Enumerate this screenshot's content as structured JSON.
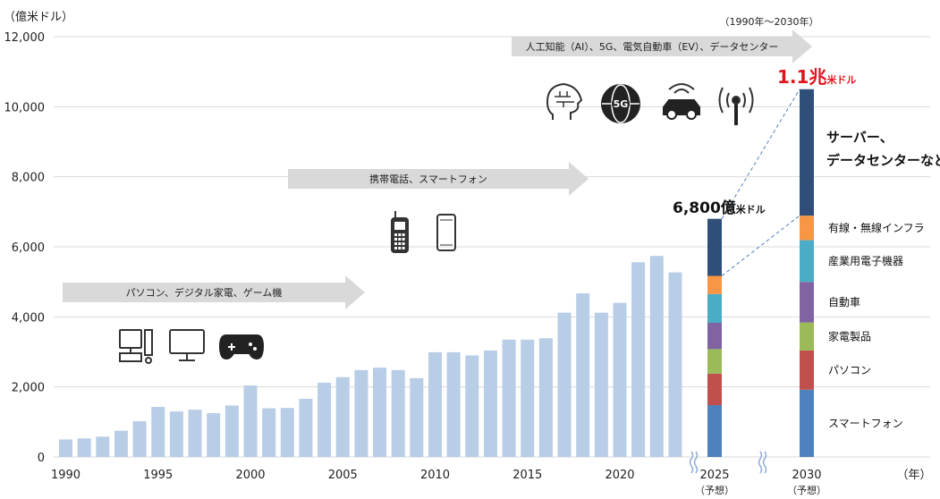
{
  "chart_data": {
    "type": "bar",
    "unit_label": "（億米ドル）",
    "period_label": "（1990年～2030年）",
    "year_axis_suffix": "（年）",
    "ylim": [
      0,
      12000
    ],
    "y_ticks": [
      "0",
      "2,000",
      "4,000",
      "6,000",
      "8,000",
      "10,000",
      "12,000"
    ],
    "y_tick_values": [
      0,
      2000,
      4000,
      6000,
      8000,
      10000,
      12000
    ],
    "grid": true,
    "historical": {
      "years": [
        1990,
        1991,
        1992,
        1993,
        1994,
        1995,
        1996,
        1997,
        1998,
        1999,
        2000,
        2001,
        2002,
        2003,
        2004,
        2005,
        2006,
        2007,
        2008,
        2009,
        2010,
        2011,
        2012,
        2013,
        2014,
        2015,
        2016,
        2017,
        2018,
        2019,
        2020,
        2021,
        2022,
        2023
      ],
      "values": [
        500,
        530,
        580,
        750,
        1020,
        1430,
        1300,
        1350,
        1250,
        1470,
        2040,
        1390,
        1400,
        1660,
        2120,
        2280,
        2480,
        2550,
        2480,
        2250,
        2990,
        2990,
        2900,
        3040,
        3350,
        3350,
        3390,
        4120,
        4670,
        4120,
        4400,
        5560,
        5740,
        5270
      ],
      "color": "#b8cde6"
    },
    "x_tick_labels": [
      "1990",
      "1995",
      "2000",
      "2005",
      "2010",
      "2015",
      "2020"
    ],
    "x_tick_years": [
      1990,
      1995,
      2000,
      2005,
      2010,
      2015,
      2020
    ],
    "forecast_bars": [
      {
        "year_label": "2025",
        "sub_label": "（予想）",
        "total": 6800
      },
      {
        "year_label": "2030",
        "sub_label": "（予想）",
        "total": 10500
      }
    ],
    "segments": [
      {
        "name": "スマートフォン",
        "color": "#4e81bd",
        "values": [
          1480,
          1920
        ]
      },
      {
        "name": "パソコン",
        "color": "#c0504d",
        "values": [
          900,
          1120
        ]
      },
      {
        "name": "家電製品",
        "color": "#9bbb59",
        "values": [
          700,
          800
        ]
      },
      {
        "name": "自動車",
        "color": "#8064a2",
        "values": [
          750,
          1160
        ]
      },
      {
        "name": "産業用電子機器",
        "color": "#4bacc6",
        "values": [
          820,
          1190
        ]
      },
      {
        "name": "有線・無線インフラ",
        "color": "#f79646",
        "values": [
          520,
          700
        ]
      },
      {
        "name": "サーバー、データセンターなど",
        "name_lines": [
          "サーバー、",
          "データセンターなど"
        ],
        "color": "#2f4f79",
        "values": [
          1630,
          3610
        ]
      }
    ],
    "callouts": {
      "y2025": {
        "value": "6,800億",
        "unit": "米ドル"
      },
      "y2030": {
        "value": "1.1兆",
        "unit": "米ドル"
      }
    },
    "eras": [
      {
        "label": "パソコン、デジタル家電、ゲーム機",
        "icons": [
          "desktop-pc-icon",
          "monitor-icon",
          "game-controller-icon"
        ]
      },
      {
        "label": "携帯電話、スマートフォン",
        "icons": [
          "feature-phone-icon",
          "smartphone-icon"
        ]
      },
      {
        "label": "人工知能（AI）、5G、電気自動車（EV）、データセンター",
        "icons": [
          "ai-head-icon",
          "5g-globe-icon",
          "connected-car-icon",
          "antenna-icon"
        ]
      }
    ],
    "colors": {
      "gridline": "#d9d9d9",
      "arrow": "#d9d9d9",
      "dashed": "#4e81bd"
    }
  }
}
